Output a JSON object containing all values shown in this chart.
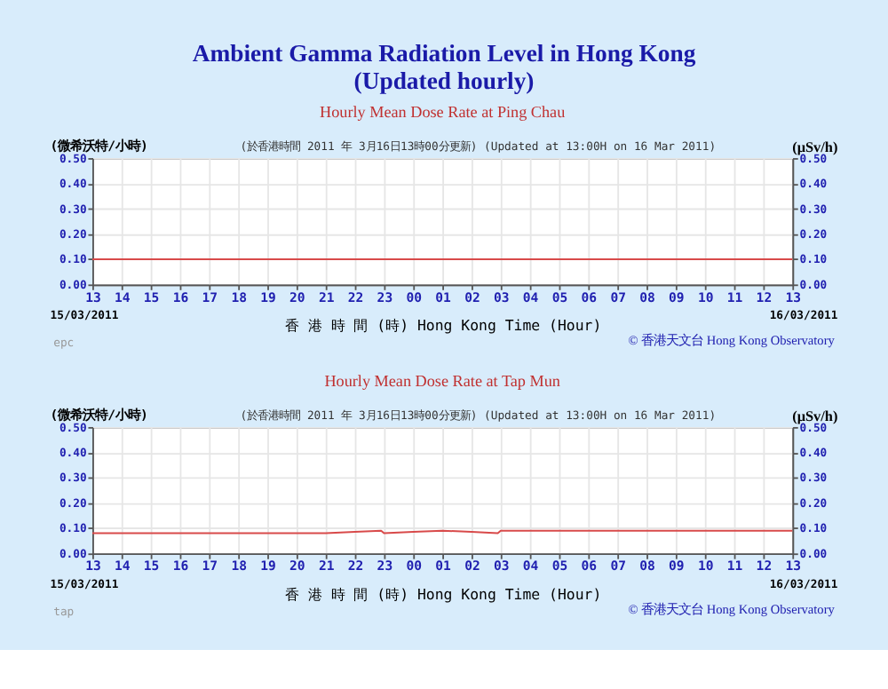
{
  "chart_data": [
    {
      "type": "line",
      "title": "Ambient Gamma Radiation Level in Hong Kong\n(Updated hourly)",
      "subtitle": "Hourly Mean Dose Rate at Ping Chau",
      "xlabel": "香 港 時 間 (時) Hong Kong Time (Hour)",
      "ylabel": "(微希沃特/小時)",
      "y2label": "(μSv/h)",
      "annotations": [
        "(於香港時間 2011 年 3月16日13時00分更新) (Updated at 13:00H on 16 Mar 2011)",
        "15/03/2011",
        "16/03/2011",
        "© 香港天文台 Hong Kong Observatory",
        "epc"
      ],
      "x": [
        "2011-03-15T13:00",
        "2011-03-16T13:00"
      ],
      "series": [
        {
          "color": "#d84a4a",
          "values": [
            0.1,
            0.1
          ]
        }
      ],
      "xlim": [
        "2011-03-15T13:00",
        "2011-03-16T13:00"
      ],
      "xticks": [
        {
          "value": "2011-03-15T13:00",
          "label": "13"
        },
        {
          "value": "2011-03-15T14:00",
          "label": "14"
        },
        {
          "value": "2011-03-15T15:00",
          "label": "15"
        },
        {
          "value": "2011-03-15T16:00",
          "label": "16"
        },
        {
          "value": "2011-03-15T17:00",
          "label": "17"
        },
        {
          "value": "2011-03-15T18:00",
          "label": "18"
        },
        {
          "value": "2011-03-15T19:00",
          "label": "19"
        },
        {
          "value": "2011-03-15T20:00",
          "label": "20"
        },
        {
          "value": "2011-03-15T21:00",
          "label": "21"
        },
        {
          "value": "2011-03-15T22:00",
          "label": "22"
        },
        {
          "value": "2011-03-15T23:00",
          "label": "23"
        },
        {
          "value": "2011-03-16T00:00",
          "label": "00"
        },
        {
          "value": "2011-03-16T01:00",
          "label": "01"
        },
        {
          "value": "2011-03-16T02:00",
          "label": "02"
        },
        {
          "value": "2011-03-16T03:00",
          "label": "03"
        },
        {
          "value": "2011-03-16T04:00",
          "label": "04"
        },
        {
          "value": "2011-03-16T05:00",
          "label": "05"
        },
        {
          "value": "2011-03-16T06:00",
          "label": "06"
        },
        {
          "value": "2011-03-16T07:00",
          "label": "07"
        },
        {
          "value": "2011-03-16T08:00",
          "label": "08"
        },
        {
          "value": "2011-03-16T09:00",
          "label": "09"
        },
        {
          "value": "2011-03-16T10:00",
          "label": "10"
        },
        {
          "value": "2011-03-16T11:00",
          "label": "11"
        },
        {
          "value": "2011-03-16T12:00",
          "label": "12"
        },
        {
          "value": "2011-03-16T13:00",
          "label": "13"
        }
      ],
      "ylim": [
        0,
        0.5
      ],
      "yticks": [
        {
          "value": 0,
          "label": "0.00"
        },
        {
          "value": 0.1,
          "label": "0.10"
        },
        {
          "value": 0.2,
          "label": "0.20"
        },
        {
          "value": 0.3,
          "label": "0.30"
        },
        {
          "value": 0.4,
          "label": "0.40"
        },
        {
          "value": 0.5,
          "label": "0.50"
        }
      ],
      "y2lim": [
        0,
        0.5
      ],
      "y2ticks": [
        {
          "value": 0,
          "label": "0.00"
        },
        {
          "value": 0.1,
          "label": "0.10"
        },
        {
          "value": 0.2,
          "label": "0.20"
        },
        {
          "value": 0.3,
          "label": "0.30"
        },
        {
          "value": 0.4,
          "label": "0.40"
        },
        {
          "value": 0.5,
          "label": "0.50"
        }
      ],
      "grid": true,
      "marker": "none",
      "line_style": "solid"
    },
    {
      "type": "line",
      "subtitle": "Hourly Mean Dose Rate at Tap Mun",
      "xlabel": "香 港 時 間 (時) Hong Kong Time (Hour)",
      "ylabel": "(微希沃特/小時)",
      "y2label": "(μSv/h)",
      "annotations": [
        "(於香港時間 2011 年 3月16日13時00分更新) (Updated at 13:00H on 16 Mar 2011)",
        "15/03/2011",
        "16/03/2011",
        "© 香港天文台 Hong Kong Observatory",
        "tap"
      ],
      "x": [
        "2011-03-15T13:00",
        "2011-03-15T21:00",
        "2011-03-15T22:00",
        "2011-03-15T22:54",
        "2011-03-15T23:00",
        "2011-03-16T00:00",
        "2011-03-16T01:00",
        "2011-03-16T02:00",
        "2011-03-16T02:54",
        "2011-03-16T03:00",
        "2011-03-16T13:00"
      ],
      "series": [
        {
          "color": "#d84a4a",
          "values": [
            0.08,
            0.08,
            0.085,
            0.09,
            0.08,
            0.085,
            0.09,
            0.085,
            0.08,
            0.09,
            0.09
          ]
        }
      ],
      "xlim": [
        "2011-03-15T13:00",
        "2011-03-16T13:00"
      ],
      "xticks": [
        {
          "value": "2011-03-15T13:00",
          "label": "13"
        },
        {
          "value": "2011-03-15T14:00",
          "label": "14"
        },
        {
          "value": "2011-03-15T15:00",
          "label": "15"
        },
        {
          "value": "2011-03-15T16:00",
          "label": "16"
        },
        {
          "value": "2011-03-15T17:00",
          "label": "17"
        },
        {
          "value": "2011-03-15T18:00",
          "label": "18"
        },
        {
          "value": "2011-03-15T19:00",
          "label": "19"
        },
        {
          "value": "2011-03-15T20:00",
          "label": "20"
        },
        {
          "value": "2011-03-15T21:00",
          "label": "21"
        },
        {
          "value": "2011-03-15T22:00",
          "label": "22"
        },
        {
          "value": "2011-03-15T23:00",
          "label": "23"
        },
        {
          "value": "2011-03-16T00:00",
          "label": "00"
        },
        {
          "value": "2011-03-16T01:00",
          "label": "01"
        },
        {
          "value": "2011-03-16T02:00",
          "label": "02"
        },
        {
          "value": "2011-03-16T03:00",
          "label": "03"
        },
        {
          "value": "2011-03-16T04:00",
          "label": "04"
        },
        {
          "value": "2011-03-16T05:00",
          "label": "05"
        },
        {
          "value": "2011-03-16T06:00",
          "label": "06"
        },
        {
          "value": "2011-03-16T07:00",
          "label": "07"
        },
        {
          "value": "2011-03-16T08:00",
          "label": "08"
        },
        {
          "value": "2011-03-16T09:00",
          "label": "09"
        },
        {
          "value": "2011-03-16T10:00",
          "label": "10"
        },
        {
          "value": "2011-03-16T11:00",
          "label": "11"
        },
        {
          "value": "2011-03-16T12:00",
          "label": "12"
        },
        {
          "value": "2011-03-16T13:00",
          "label": "13"
        }
      ],
      "ylim": [
        0,
        0.5
      ],
      "yticks": [
        {
          "value": 0,
          "label": "0.00"
        },
        {
          "value": 0.1,
          "label": "0.10"
        },
        {
          "value": 0.2,
          "label": "0.20"
        },
        {
          "value": 0.3,
          "label": "0.30"
        },
        {
          "value": 0.4,
          "label": "0.40"
        },
        {
          "value": 0.5,
          "label": "0.50"
        }
      ],
      "y2lim": [
        0,
        0.5
      ],
      "y2ticks": [
        {
          "value": 0,
          "label": "0.00"
        },
        {
          "value": 0.1,
          "label": "0.10"
        },
        {
          "value": 0.2,
          "label": "0.20"
        },
        {
          "value": 0.3,
          "label": "0.30"
        },
        {
          "value": 0.4,
          "label": "0.40"
        },
        {
          "value": 0.5,
          "label": "0.50"
        }
      ],
      "grid": true,
      "marker": "none",
      "line_style": "solid"
    }
  ]
}
